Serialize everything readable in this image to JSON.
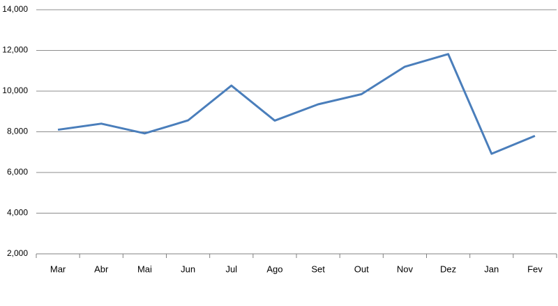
{
  "chart_data": {
    "type": "line",
    "categories": [
      "Mar",
      "Abr",
      "Mai",
      "Jun",
      "Jul",
      "Ago",
      "Set",
      "Out",
      "Nov",
      "Dez",
      "Jan",
      "Fev"
    ],
    "series": [
      {
        "color": "#4a7ebb",
        "values": [
          8100,
          8400,
          7920,
          8560,
          10270,
          8550,
          9350,
          9850,
          11200,
          11820,
          6920,
          7800
        ]
      }
    ],
    "ylim": [
      2000,
      14000
    ],
    "yticks": [
      {
        "value": 2000,
        "label": "2,000"
      },
      {
        "value": 4000,
        "label": "4,000"
      },
      {
        "value": 6000,
        "label": "6,000"
      },
      {
        "value": 8000,
        "label": "8,000"
      },
      {
        "value": 10000,
        "label": "10,000"
      },
      {
        "value": 12000,
        "label": "12,000"
      },
      {
        "value": 14000,
        "label": "14,000"
      }
    ],
    "grid": true
  }
}
